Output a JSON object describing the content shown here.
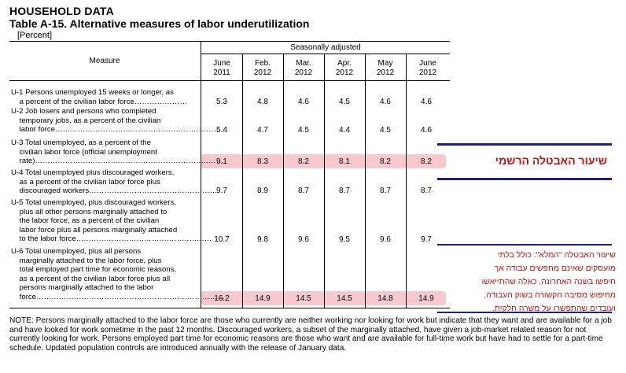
{
  "header": {
    "section": "HOUSEHOLD DATA",
    "title": "Table A-15. Alternative measures of labor underutilization",
    "unit": "[Percent]"
  },
  "table": {
    "measure_header": "Measure",
    "group_header": "Seasonally adjusted",
    "columns": [
      {
        "month": "June",
        "year": "2011"
      },
      {
        "month": "Feb.",
        "year": "2012"
      },
      {
        "month": "Mar.",
        "year": "2012"
      },
      {
        "month": "Apr.",
        "year": "2012"
      },
      {
        "month": "May",
        "year": "2012"
      },
      {
        "month": "June",
        "year": "2012"
      }
    ],
    "rows": [
      {
        "label": "U-1 Persons unemployed 15 weeks or longer, as\n    a percent of the civilian labor force…………………",
        "values": [
          "5.3",
          "4.8",
          "4.6",
          "4.5",
          "4.6",
          "4.6"
        ]
      },
      {
        "label": "U-2 Job losers and persons who completed\n    temporary jobs, as a percent of the civilian\n    labor force…………………………………………………………",
        "values": [
          "5.4",
          "4.7",
          "4.5",
          "4.4",
          "4.5",
          "4.6"
        ]
      },
      {
        "label": "U-3 Total unemployed, as a percent of the\n    civilian labor force (official unemployment\n    rate)…………………………………………………………………",
        "values": [
          "9.1",
          "8.3",
          "8.2",
          "8.1",
          "8.2",
          "8.2"
        ]
      },
      {
        "label": "U-4 Total unemployed plus discouraged workers,\n    as a percent of the civilian labor force plus\n    discouraged workers……………………………………………",
        "values": [
          "9.7",
          "8.9",
          "8.7",
          "8.7",
          "8.7",
          "8.7"
        ]
      },
      {
        "label": "U-5 Total unemployed, plus discouraged workers,\n    plus all other persons marginally attached to\n    the labor force, as a percent of the civilian\n    labor force plus all persons marginally attached\n    to the labor force………………………………………………",
        "values": [
          "10.7",
          "9.8",
          "9.6",
          "9.5",
          "9.6",
          "9.7"
        ]
      },
      {
        "label": "U-6 Total unemployed, plus all persons\n    marginally attached to the labor force, plus\n    total employed part time for economic reasons,\n    as a percent of the civilian labor force plus all\n    persons marginally attached to the labor\n    force…………………………………………………………………",
        "values": [
          "16.2",
          "14.9",
          "14.5",
          "14.5",
          "14.8",
          "14.9"
        ]
      }
    ]
  },
  "annotations": {
    "official_rate": "שיעור האבטלה הרשמי",
    "full_rate": "שיעור האבטלה \"המלא\": כולל בלתי\nמועסקים שאינם מחפשים עבודה אך\nחיפשו בשנה האחרונה, כאלה שהתייאשו\nמחיפוש מסיבה הקשורה בשוק העבודה,\nועובדים שהתפשרו על משרה חלקית."
  },
  "colors": {
    "highlight": "#f6c9cf",
    "annotation_text": "#cc1010",
    "annotation_line": "#1a237e"
  },
  "note": "NOTE: Persons marginally attached to the labor force are those who currently are neither working nor looking for work but indicate that they want and are available for a job and have looked for work sometime in the past 12 months. Discouraged workers, a subset of the marginally attached, have given a job-market related reason for not currently looking for work. Persons employed part time for economic reasons are those who want and are available for full-time work but have had to settle for a part-time schedule. Updated population controls are introduced annually with the release of January data."
}
